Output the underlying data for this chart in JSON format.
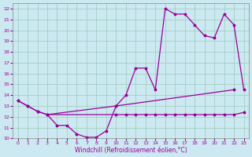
{
  "xlabel": "Windchill (Refroidissement éolien,°C)",
  "bg_color": "#cce8f0",
  "line_color": "#990099",
  "grid_color": "#99ccbb",
  "xlim": [
    -0.5,
    23.5
  ],
  "ylim": [
    10,
    22.5
  ],
  "xticks": [
    0,
    1,
    2,
    3,
    4,
    5,
    6,
    7,
    8,
    9,
    10,
    11,
    12,
    13,
    14,
    15,
    16,
    17,
    18,
    19,
    20,
    21,
    22,
    23
  ],
  "yticks": [
    10,
    11,
    12,
    13,
    14,
    15,
    16,
    17,
    18,
    19,
    20,
    21,
    22
  ],
  "curve1_x": [
    0,
    1,
    2,
    3,
    4,
    5,
    6,
    7,
    8,
    9,
    10,
    22
  ],
  "curve1_y": [
    13.5,
    13.0,
    12.5,
    12.2,
    11.2,
    11.2,
    10.4,
    10.1,
    10.1,
    10.7,
    13.0,
    14.5
  ],
  "curve2_x": [
    0,
    1,
    2,
    3,
    10,
    11,
    12,
    13,
    14,
    15,
    16,
    17,
    18,
    19,
    20,
    21,
    22,
    23
  ],
  "curve2_y": [
    13.5,
    13.0,
    12.5,
    12.2,
    13.0,
    14.0,
    16.5,
    16.5,
    14.5,
    22.0,
    21.5,
    21.5,
    20.5,
    19.5,
    19.3,
    21.5,
    20.5,
    14.5
  ],
  "curve3_x": [
    3,
    10,
    11,
    12,
    13,
    14,
    15,
    16,
    17,
    18,
    19,
    20,
    21,
    22,
    23
  ],
  "curve3_y": [
    12.2,
    12.2,
    12.2,
    12.2,
    12.2,
    12.2,
    12.2,
    12.2,
    12.2,
    12.2,
    12.2,
    12.2,
    12.2,
    12.2,
    12.4
  ]
}
